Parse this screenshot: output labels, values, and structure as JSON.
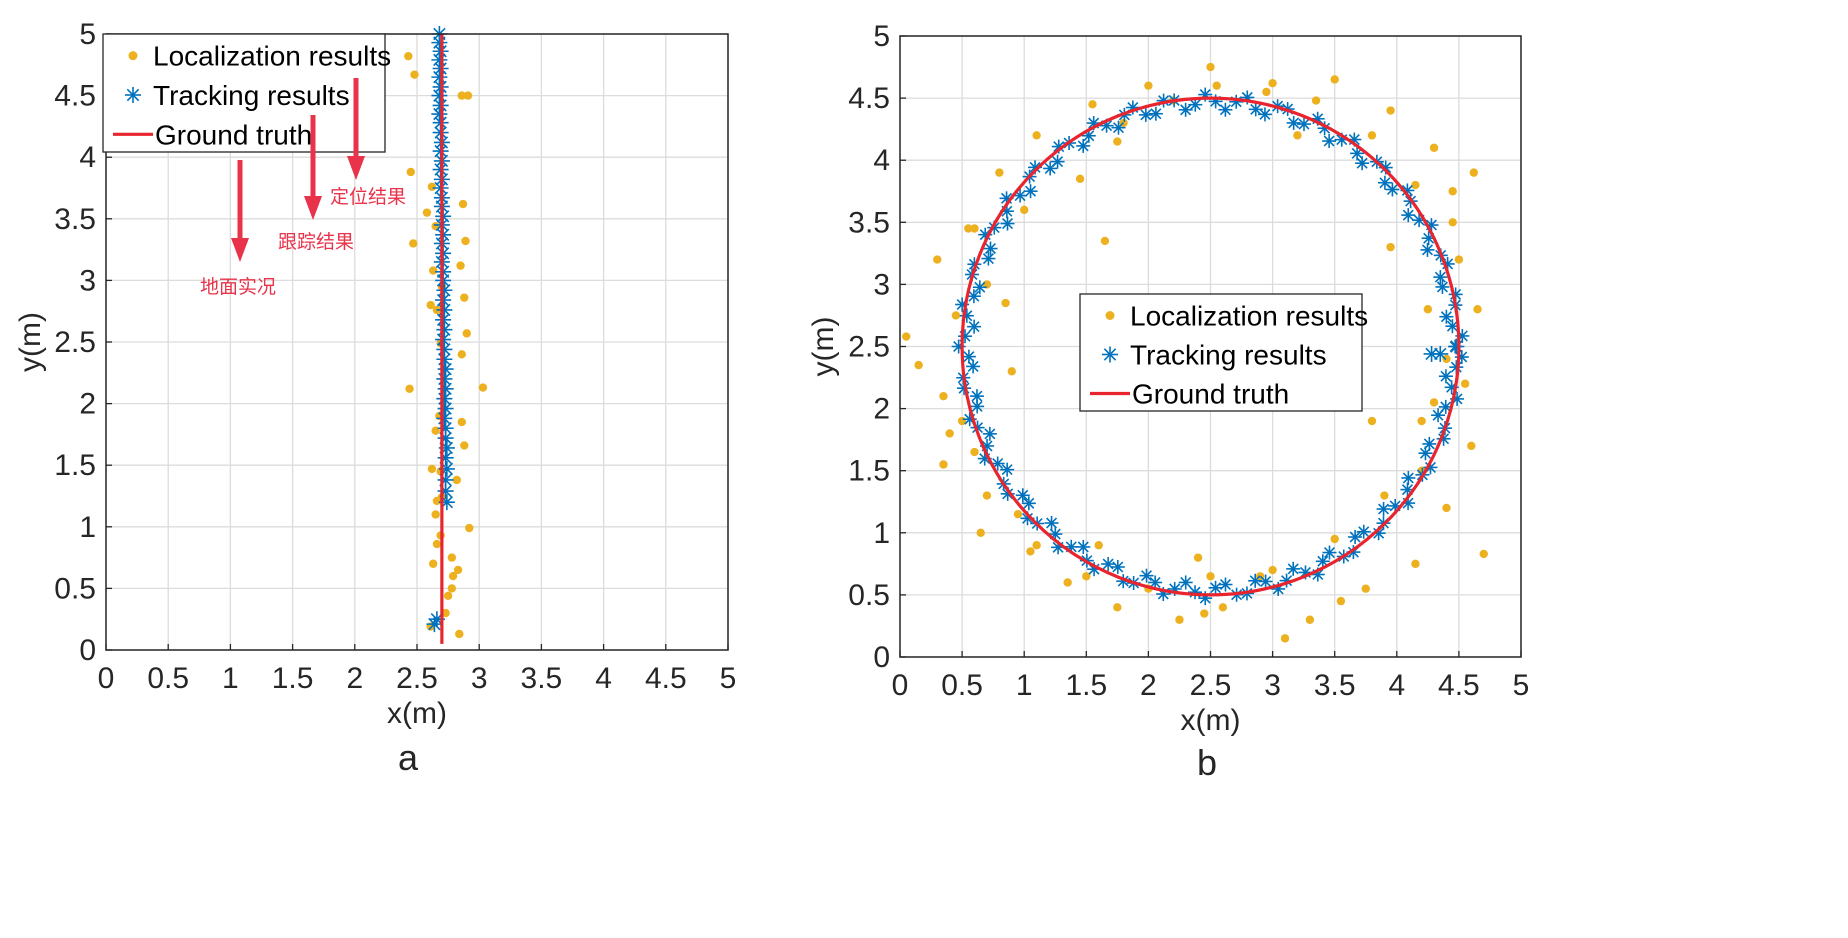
{
  "colors": {
    "localization": "#EDB120",
    "tracking": "#0072BD",
    "ground_truth": "#e8252e",
    "annotation": "#e8334a"
  },
  "chart_data": [
    {
      "type": "scatter",
      "panel_label": "a",
      "xlabel": "x(m)",
      "ylabel": "y(m)",
      "xlim": [
        0,
        5
      ],
      "ylim": [
        0,
        5
      ],
      "xticks": [
        "0",
        "0.5",
        "1",
        "1.5",
        "2",
        "2.5",
        "3",
        "3.5",
        "4",
        "4.5",
        "5"
      ],
      "yticks": [
        "0",
        "0.5",
        "1",
        "1.5",
        "2",
        "2.5",
        "3",
        "3.5",
        "4",
        "4.5",
        "5"
      ],
      "grid": true,
      "legend_position": "top-left",
      "legend": [
        "Localization results",
        "Tracking results",
        "Ground truth"
      ],
      "annotations": [
        {
          "text": "定位结果",
          "points_to": "Localization results"
        },
        {
          "text": "跟踪结果",
          "points_to": "Tracking results"
        },
        {
          "text": "地面实况",
          "points_to": "Ground truth"
        }
      ],
      "series": [
        {
          "name": "Localization results",
          "marker": "dot",
          "x": [
            2.43,
            2.48,
            2.86,
            2.91,
            2.45,
            2.62,
            2.87,
            2.58,
            2.65,
            2.89,
            2.47,
            2.85,
            2.63,
            2.7,
            2.88,
            2.61,
            2.66,
            2.9,
            2.69,
            2.86,
            2.44,
            3.03,
            2.68,
            2.86,
            2.65,
            2.88,
            2.62,
            2.69,
            2.82,
            2.66,
            2.7,
            2.65,
            2.92,
            2.69,
            2.66,
            2.78,
            2.63,
            2.83,
            2.79,
            2.78,
            2.75,
            2.61,
            2.73,
            2.84
          ],
          "y": [
            4.82,
            4.67,
            4.5,
            4.5,
            3.88,
            3.76,
            3.62,
            3.55,
            3.44,
            3.32,
            3.3,
            3.12,
            3.08,
            2.95,
            2.86,
            2.8,
            2.76,
            2.57,
            2.49,
            2.4,
            2.12,
            2.13,
            1.9,
            1.85,
            1.78,
            1.66,
            1.47,
            1.45,
            1.38,
            1.21,
            1.24,
            1.1,
            0.99,
            0.93,
            0.86,
            0.75,
            0.7,
            0.65,
            0.6,
            0.5,
            0.44,
            0.19,
            0.3,
            0.13
          ]
        },
        {
          "name": "Tracking results",
          "marker": "asterisk",
          "x": [
            2.68,
            2.68,
            2.69,
            2.68,
            2.69,
            2.68,
            2.69,
            2.68,
            2.69,
            2.68,
            2.69,
            2.69,
            2.7,
            2.69,
            2.7,
            2.69,
            2.7,
            2.69,
            2.7,
            2.7,
            2.71,
            2.7,
            2.71,
            2.7,
            2.71,
            2.7,
            2.71,
            2.71,
            2.72,
            2.71,
            2.72,
            2.71,
            2.72,
            2.71,
            2.72,
            2.72,
            2.73,
            2.72,
            2.73,
            2.72,
            2.73,
            2.72,
            2.73,
            2.73,
            2.74,
            2.73,
            2.74,
            2.73,
            2.73,
            2.74,
            2.66,
            2.64
          ],
          "y": [
            5.0,
            4.93,
            4.86,
            4.79,
            4.72,
            4.65,
            4.57,
            4.5,
            4.42,
            4.35,
            4.28,
            4.2,
            4.12,
            4.05,
            3.97,
            3.9,
            3.82,
            3.75,
            3.67,
            3.6,
            3.52,
            3.45,
            3.37,
            3.3,
            3.22,
            3.15,
            3.07,
            3.0,
            2.92,
            2.84,
            2.76,
            2.68,
            2.6,
            2.52,
            2.44,
            2.36,
            2.28,
            2.2,
            2.12,
            2.04,
            1.96,
            1.88,
            1.8,
            1.72,
            1.64,
            1.56,
            1.47,
            1.38,
            1.29,
            1.2,
            0.25,
            0.21
          ]
        },
        {
          "name": "Ground truth",
          "marker": "line",
          "x": [
            2.7,
            2.7
          ],
          "y": [
            0.05,
            5.0
          ]
        }
      ]
    },
    {
      "type": "scatter",
      "panel_label": "b",
      "xlabel": "x(m)",
      "ylabel": "y(m)",
      "xlim": [
        0,
        5
      ],
      "ylim": [
        0,
        5
      ],
      "xticks": [
        "0",
        "0.5",
        "1",
        "1.5",
        "2",
        "2.5",
        "3",
        "3.5",
        "4",
        "4.5",
        "5"
      ],
      "yticks": [
        "0",
        "0.5",
        "1",
        "1.5",
        "2",
        "2.5",
        "3",
        "3.5",
        "4",
        "4.5",
        "5"
      ],
      "grid": true,
      "legend_position": "center",
      "legend": [
        "Localization results",
        "Tracking results",
        "Ground truth"
      ],
      "series": [
        {
          "name": "Localization results",
          "marker": "dot",
          "x": [
            2.5,
            3.0,
            3.5,
            3.95,
            4.3,
            4.45,
            4.5,
            4.4,
            4.2,
            3.9,
            3.5,
            3.0,
            2.5,
            2.0,
            1.5,
            1.05,
            0.7,
            0.5,
            0.45,
            0.55,
            0.8,
            1.1,
            1.55,
            2.0,
            0.05,
            0.15,
            0.3,
            0.35,
            0.4,
            0.35,
            0.6,
            0.65,
            0.95,
            1.1,
            1.35,
            1.6,
            1.75,
            2.25,
            2.6,
            2.9,
            3.1,
            3.3,
            3.55,
            3.75,
            4.15,
            4.4,
            4.7,
            4.6,
            4.55,
            4.65,
            4.45,
            4.15,
            3.8,
            3.35,
            2.95,
            2.55,
            2.2,
            1.8,
            1.45,
            1.0,
            0.7,
            1.65,
            1.75,
            4.2,
            4.3,
            3.8,
            3.95,
            0.85,
            0.9,
            2.4,
            2.45,
            3.2,
            0.6,
            4.62,
            4.25
          ],
          "y": [
            4.75,
            4.62,
            4.65,
            4.4,
            4.1,
            3.75,
            3.2,
            2.4,
            1.9,
            1.3,
            0.95,
            0.7,
            0.65,
            0.55,
            0.65,
            0.85,
            1.3,
            1.9,
            2.75,
            3.45,
            3.9,
            4.2,
            4.45,
            4.6,
            2.58,
            2.35,
            3.2,
            2.1,
            1.8,
            1.55,
            1.65,
            1.0,
            1.15,
            0.9,
            0.6,
            0.9,
            0.4,
            0.3,
            0.4,
            0.65,
            0.15,
            0.3,
            0.45,
            0.55,
            0.75,
            1.2,
            0.83,
            1.7,
            2.2,
            2.8,
            3.5,
            3.8,
            4.2,
            4.48,
            4.55,
            4.6,
            4.48,
            4.3,
            3.85,
            3.6,
            3.0,
            3.35,
            4.15,
            1.5,
            2.05,
            1.9,
            3.3,
            2.85,
            2.3,
            0.8,
            0.35,
            4.2,
            3.45,
            3.9,
            2.8
          ]
        },
        {
          "name": "Tracking results",
          "marker": "asterisk",
          "x": [
            4.28,
            4.35,
            4.48
          ],
          "y": [
            2.44,
            2.44,
            2.5
          ]
        },
        {
          "name": "Ground truth",
          "marker": "line",
          "shape": "circle",
          "center": [
            2.5,
            2.5
          ],
          "radius": 2.0
        }
      ]
    }
  ]
}
